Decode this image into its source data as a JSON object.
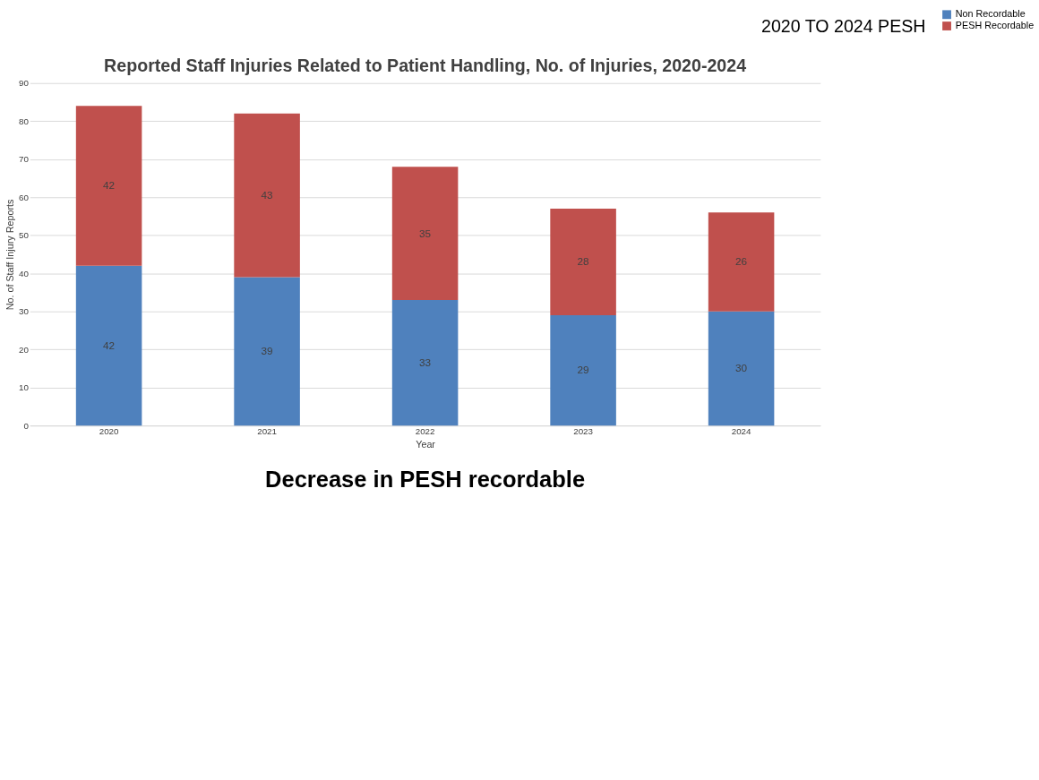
{
  "chart_data": {
    "type": "bar",
    "title": "Reported Staff Injuries Related to Patient Handling, No. of Injuries, 2020-2024",
    "xlabel": "Year",
    "ylabel": "No. of Staff Injury Reports",
    "categories": [
      "2020",
      "2021",
      "2022",
      "2023",
      "2024"
    ],
    "stacked": true,
    "series": [
      {
        "name": "Non Recordable",
        "color": "#4f81bd",
        "values": [
          42,
          39,
          33,
          29,
          30
        ]
      },
      {
        "name": "PESH Recordable",
        "color": "#c0504d",
        "values": [
          42,
          43,
          35,
          28,
          26
        ]
      }
    ],
    "ylim": [
      0,
      90
    ],
    "yticks": [
      0,
      10,
      20,
      30,
      40,
      50,
      60,
      70,
      80,
      90
    ],
    "grid": "y",
    "legend": "right",
    "data_labels": true,
    "annotations": [
      "2020 TO 2024 PESH",
      "Decrease in PESH recordable"
    ]
  }
}
